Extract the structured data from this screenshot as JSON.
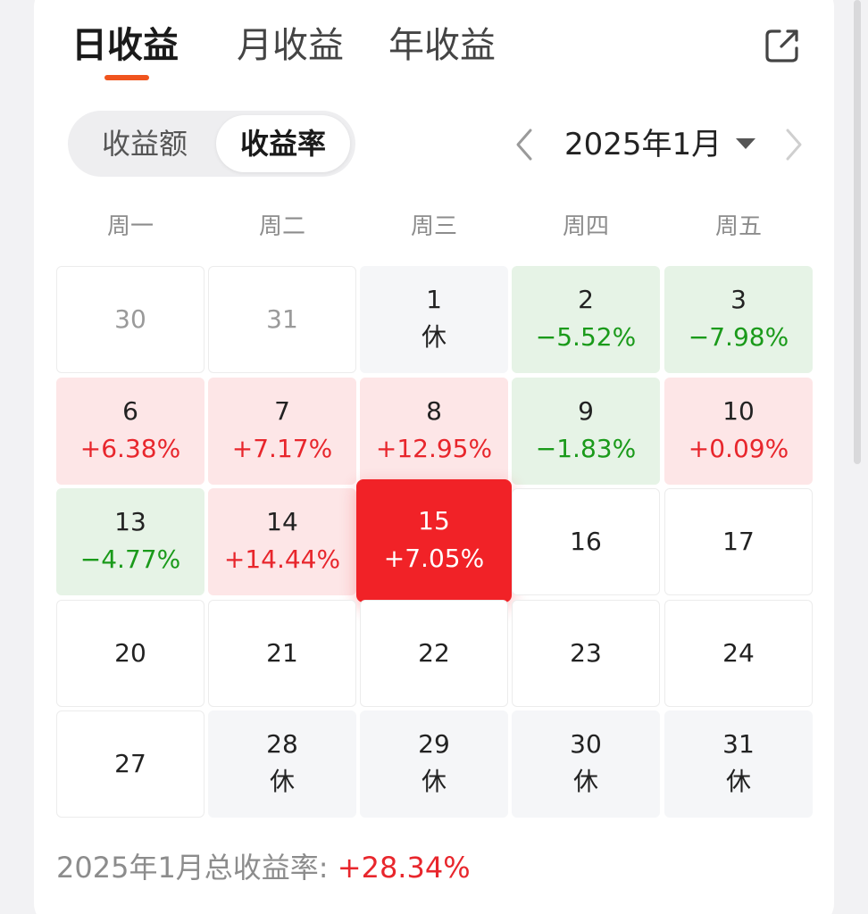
{
  "tabs": {
    "day": "日收益",
    "month": "月收益",
    "year": "年收益"
  },
  "segment": {
    "amount": "收益额",
    "rate": "收益率"
  },
  "month_picker": {
    "label": "2025年1月"
  },
  "weekdays": [
    "周一",
    "周二",
    "周三",
    "周四",
    "周五"
  ],
  "cells": [
    {
      "day": "30",
      "sub": "",
      "state": "prev"
    },
    {
      "day": "31",
      "sub": "",
      "state": "prev"
    },
    {
      "day": "1",
      "sub": "休",
      "state": "rest"
    },
    {
      "day": "2",
      "sub": "−5.52%",
      "state": "down"
    },
    {
      "day": "3",
      "sub": "−7.98%",
      "state": "down"
    },
    {
      "day": "6",
      "sub": "+6.38%",
      "state": "up"
    },
    {
      "day": "7",
      "sub": "+7.17%",
      "state": "up"
    },
    {
      "day": "8",
      "sub": "+12.95%",
      "state": "up"
    },
    {
      "day": "9",
      "sub": "−1.83%",
      "state": "down"
    },
    {
      "day": "10",
      "sub": "+0.09%",
      "state": "up"
    },
    {
      "day": "13",
      "sub": "−4.77%",
      "state": "down"
    },
    {
      "day": "14",
      "sub": "+14.44%",
      "state": "up"
    },
    {
      "day": "15",
      "sub": "+7.05%",
      "state": "selected"
    },
    {
      "day": "16",
      "sub": "",
      "state": "plain"
    },
    {
      "day": "17",
      "sub": "",
      "state": "plain"
    },
    {
      "day": "20",
      "sub": "",
      "state": "plain"
    },
    {
      "day": "21",
      "sub": "",
      "state": "plain"
    },
    {
      "day": "22",
      "sub": "",
      "state": "plain"
    },
    {
      "day": "23",
      "sub": "",
      "state": "plain"
    },
    {
      "day": "24",
      "sub": "",
      "state": "plain"
    },
    {
      "day": "27",
      "sub": "",
      "state": "plain"
    },
    {
      "day": "28",
      "sub": "休",
      "state": "rest"
    },
    {
      "day": "29",
      "sub": "休",
      "state": "rest"
    },
    {
      "day": "30",
      "sub": "休",
      "state": "rest"
    },
    {
      "day": "31",
      "sub": "休",
      "state": "rest"
    }
  ],
  "footer": {
    "label": "2025年1月总收益率: ",
    "value": "+28.34%"
  },
  "colors": {
    "accent": "#f0541e",
    "up": "#e8262c",
    "down": "#1a9a1a",
    "selected": "#f12227"
  },
  "icons": {
    "share": "share-icon",
    "prev": "chevron-left-icon",
    "next": "chevron-right-icon",
    "dropdown": "triangle-down-icon"
  }
}
